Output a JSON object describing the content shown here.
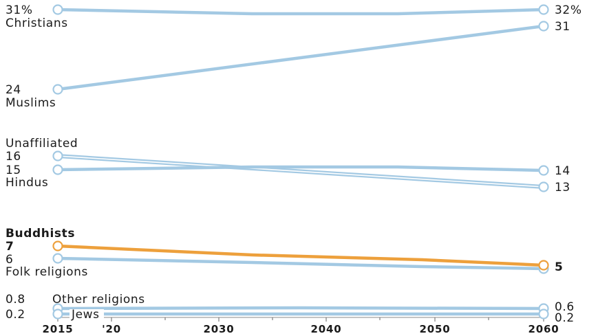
{
  "chart_data": {
    "type": "line",
    "xlabel": "",
    "ylabel": "",
    "x_ticks": [
      "2015",
      "'20",
      "2030",
      "2040",
      "2050",
      "2060"
    ],
    "x": [
      2015,
      2060
    ],
    "colors": {
      "default": "#a3c9e3",
      "highlight": "#eda03c"
    },
    "series": [
      {
        "name": "Christians",
        "values": [
          31,
          32
        ],
        "start_label": "31%",
        "end_label": "32%",
        "highlight": false
      },
      {
        "name": "Muslims",
        "values": [
          24,
          31
        ],
        "start_label": "24",
        "end_label": "31",
        "highlight": false
      },
      {
        "name": "Unaffiliated",
        "values": [
          16,
          13
        ],
        "start_label": "16",
        "end_label": "13",
        "highlight": false
      },
      {
        "name": "Hindus",
        "values": [
          15,
          14
        ],
        "start_label": "15",
        "end_label": "14",
        "highlight": false
      },
      {
        "name": "Buddhists",
        "values": [
          7,
          5
        ],
        "start_label": "7",
        "end_label": "5",
        "highlight": true
      },
      {
        "name": "Folk religions",
        "values": [
          6,
          5
        ],
        "start_label": "6",
        "end_label": "",
        "highlight": false
      },
      {
        "name": "Other religions",
        "values": [
          0.8,
          0.6
        ],
        "start_label": "0.8",
        "end_label": "0.6",
        "highlight": false
      },
      {
        "name": "Jews",
        "values": [
          0.2,
          0.2
        ],
        "start_label": "0.2",
        "end_label": "0.2",
        "highlight": false
      }
    ]
  }
}
